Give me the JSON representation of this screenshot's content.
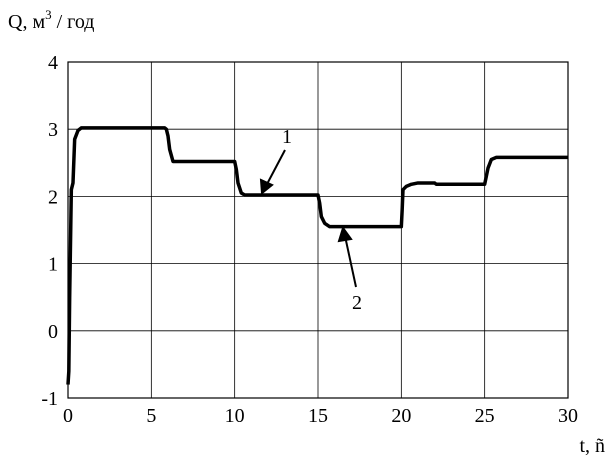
{
  "chart_data": {
    "type": "line",
    "ylabel": [
      "Q, м",
      "3",
      " / год"
    ],
    "xlabel": "t, ñ",
    "x": [
      0,
      0.05,
      0.1,
      0.2,
      0.3,
      0.4,
      0.6,
      0.8,
      5.8,
      5.9,
      6.0,
      6.1,
      6.3,
      10.0,
      10.1,
      10.2,
      10.4,
      10.6,
      15.0,
      15.1,
      15.2,
      15.4,
      15.7,
      20.0,
      20.05,
      20.1,
      20.3,
      20.6,
      21.0,
      22.0,
      22.1,
      25.0,
      25.1,
      25.2,
      25.4,
      25.7,
      30
    ],
    "values": [
      -0.8,
      -0.6,
      0.5,
      2.1,
      2.2,
      2.85,
      2.98,
      3.02,
      3.02,
      3.0,
      2.9,
      2.7,
      2.52,
      2.52,
      2.4,
      2.2,
      2.05,
      2.02,
      2.02,
      1.9,
      1.7,
      1.6,
      1.55,
      1.55,
      1.8,
      2.1,
      2.15,
      2.18,
      2.2,
      2.2,
      2.18,
      2.18,
      2.3,
      2.42,
      2.55,
      2.58,
      2.58
    ],
    "color": "#000000",
    "annotations": [
      "1",
      "2"
    ],
    "xlim": [
      0,
      30
    ],
    "xticks": [
      0,
      5,
      10,
      15,
      20,
      25,
      30
    ],
    "ylim": [
      -1,
      4
    ],
    "yticks": [
      -1,
      0,
      1,
      2,
      3,
      4
    ],
    "grid": true
  }
}
